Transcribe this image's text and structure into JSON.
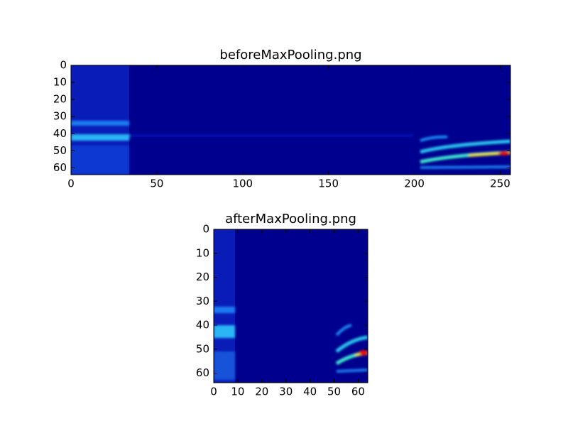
{
  "chart_data": [
    {
      "type": "image",
      "title": "beforeMaxPooling.png",
      "xlim": [
        0,
        256
      ],
      "ylim": [
        64,
        0
      ],
      "xticks": [
        0,
        50,
        100,
        150,
        200,
        250
      ],
      "yticks": [
        0,
        10,
        20,
        30,
        40,
        50,
        60
      ]
    },
    {
      "type": "image",
      "title": "afterMaxPooling.png",
      "xlim": [
        0,
        64
      ],
      "ylim": [
        64,
        0
      ],
      "xticks": [
        0,
        10,
        20,
        30,
        40,
        50,
        60
      ],
      "yticks": [
        0,
        10,
        20,
        30,
        40,
        50,
        60
      ]
    }
  ]
}
